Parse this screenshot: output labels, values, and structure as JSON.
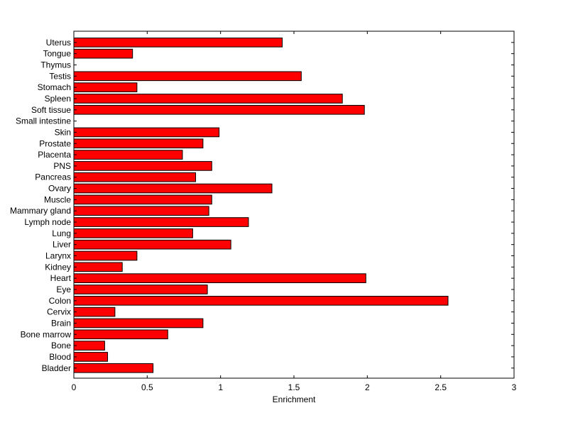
{
  "chart_data": {
    "type": "bar",
    "orientation": "horizontal",
    "title": "",
    "xlabel": "Enrichment",
    "ylabel": "",
    "xlim": [
      0,
      3
    ],
    "xticks": [
      0,
      0.5,
      1,
      1.5,
      2,
      2.5,
      3
    ],
    "xtick_labels": [
      "0",
      "0.5",
      "1",
      "1.5",
      "2",
      "2.5",
      "3"
    ],
    "grid": false,
    "bar_color": "#ff0000",
    "categories": [
      "Uterus",
      "Tongue",
      "Thymus",
      "Testis",
      "Stomach",
      "Spleen",
      "Soft tissue",
      "Small intestine",
      "Skin",
      "Prostate",
      "Placenta",
      "PNS",
      "Pancreas",
      "Ovary",
      "Muscle",
      "Mammary gland",
      "Lymph node",
      "Lung",
      "Liver",
      "Larynx",
      "Kidney",
      "Heart",
      "Eye",
      "Colon",
      "Cervix",
      "Brain",
      "Bone marrow",
      "Bone",
      "Blood",
      "Bladder"
    ],
    "values": [
      1.42,
      0.4,
      0,
      1.55,
      0.43,
      1.83,
      1.98,
      0,
      0.99,
      0.88,
      0.74,
      0.94,
      0.83,
      1.35,
      0.94,
      0.92,
      1.19,
      0.81,
      1.07,
      0.43,
      0.33,
      1.99,
      0.91,
      2.55,
      0.28,
      0.88,
      0.64,
      0.21,
      0.23,
      0.54
    ]
  }
}
